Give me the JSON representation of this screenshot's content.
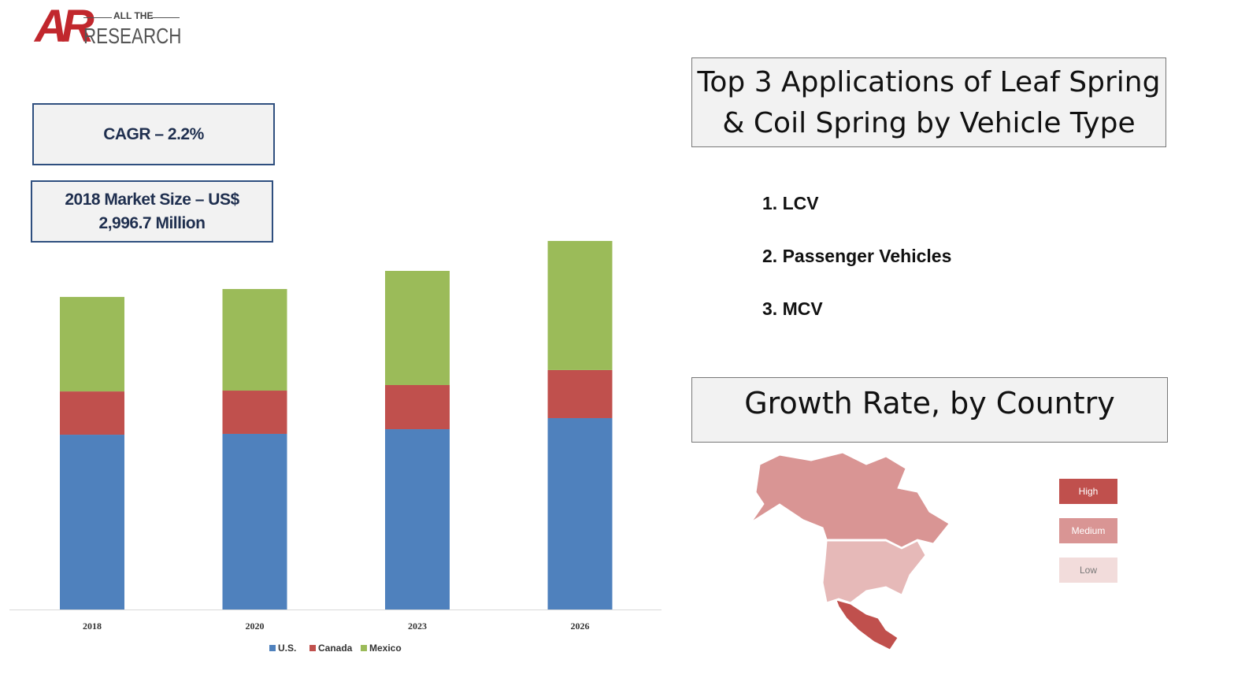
{
  "logo": {
    "mark": "AR",
    "top": "ALL THE",
    "bottom": "RESEARCH",
    "color": "#c1272d"
  },
  "cagr": "CAGR – 2.2%",
  "market_size": {
    "line1": "2018 Market Size – US$",
    "line2": "2,996.7 Million"
  },
  "applications": {
    "title_line1": "Top 3 Applications of Leaf Spring",
    "title_line2": "& Coil Spring by Vehicle Type",
    "items": [
      "1. LCV",
      "2. Passenger Vehicles",
      "3. MCV"
    ]
  },
  "growth": {
    "title": "Growth Rate, by Country",
    "legend": [
      {
        "label": "High",
        "color": "#c0504d"
      },
      {
        "label": "Medium",
        "color": "#d99594"
      },
      {
        "label": "Low",
        "color": "#f2dcdb"
      }
    ]
  },
  "chart_data": {
    "type": "bar",
    "stacked": true,
    "categories": [
      "2018",
      "2020",
      "2023",
      "2026"
    ],
    "series": [
      {
        "name": "U.S.",
        "color": "#4f81bd",
        "values": [
          1676,
          1684,
          1729,
          1835
        ]
      },
      {
        "name": "Canada",
        "color": "#c0504d",
        "values": [
          415,
          415,
          423,
          461
        ]
      },
      {
        "name": "Mexico",
        "color": "#9bbb59",
        "values": [
          906,
          974,
          1095,
          1238
        ]
      }
    ],
    "ylim": [
      0,
      3600
    ],
    "grid": false,
    "legend": "bottom"
  }
}
